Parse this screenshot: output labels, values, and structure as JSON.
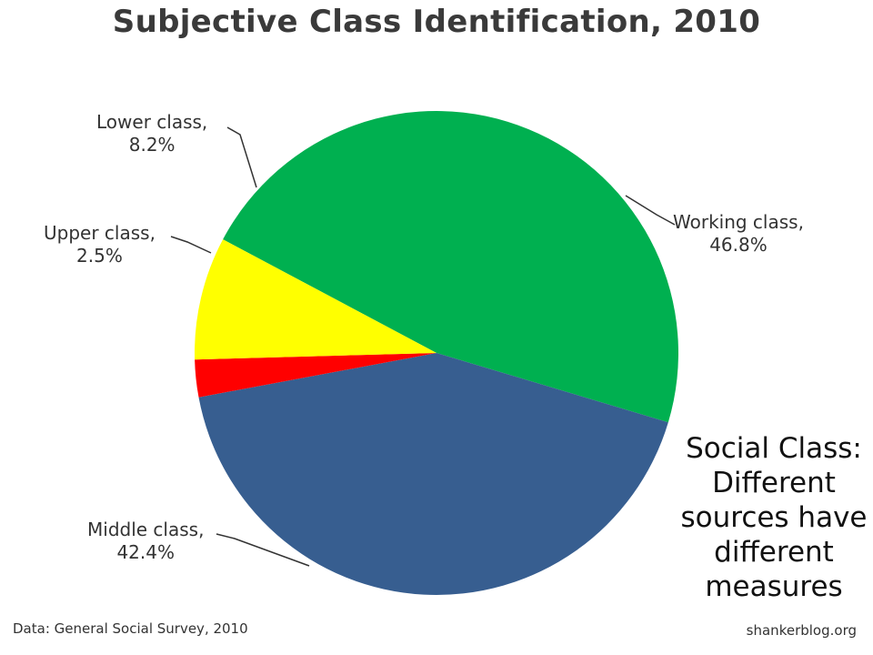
{
  "chart_data": {
    "type": "pie",
    "title": "Subjective Class Identification, 2010",
    "slices": [
      {
        "label": "Working class,",
        "value": 46.8,
        "value_text": "46.8%",
        "color": "#00b050"
      },
      {
        "label": "Middle class,",
        "value": 42.4,
        "value_text": "42.4%",
        "color": "#375e90"
      },
      {
        "label": "Upper class,",
        "value": 2.5,
        "value_text": "2.5%",
        "color": "#ff0000"
      },
      {
        "label": "Lower class,",
        "value": 8.2,
        "value_text": "8.2%",
        "color": "#ffff00"
      }
    ],
    "source_note": "Data: General Social Survey, 2010",
    "site": "shankerblog.org"
  },
  "slide": {
    "overlay_lines": [
      "Social Class:",
      "Different",
      "sources have",
      "different",
      "measures"
    ]
  }
}
